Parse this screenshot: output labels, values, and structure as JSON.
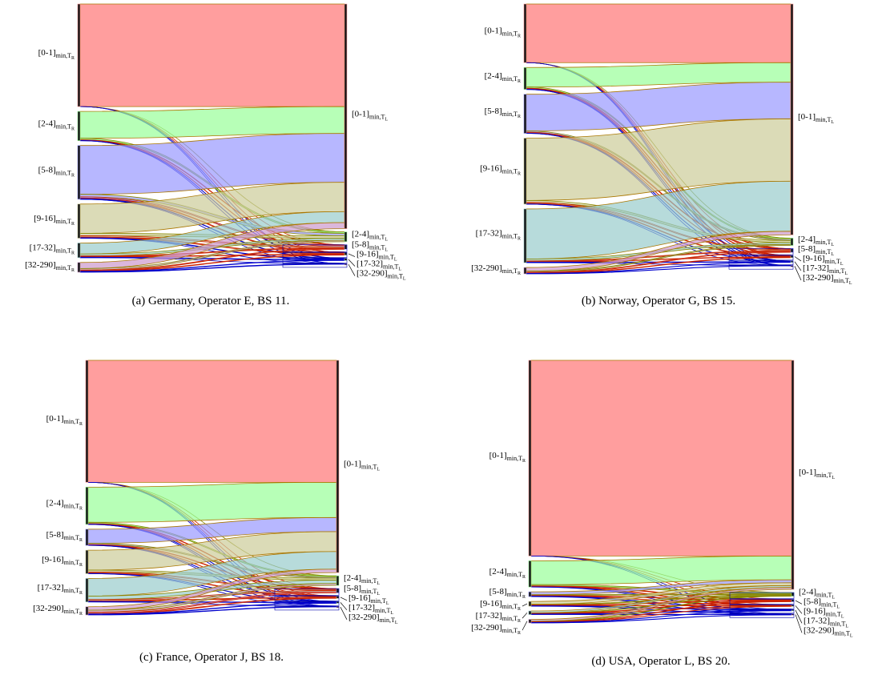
{
  "chart_data": [
    {
      "type": "sankey",
      "caption": "(a) Germany, Operator E, BS 11.",
      "left_nodes": [
        "[0-1]",
        "[2-4]",
        "[5-8]",
        "[9-16]",
        "[17-32]",
        "[32-290]"
      ],
      "right_nodes": [
        "[0-1]",
        "[2-4]",
        "[5-8]",
        "[9-16]",
        "[17-32]",
        "[32-290]"
      ],
      "subscript": "min,T",
      "left_index": "R",
      "right_index": "L",
      "colors": [
        "#ff9999",
        "#99ff99",
        "#9999ff",
        "#cccc99",
        "#99cccc",
        "#cc99cc"
      ],
      "link_colors": [
        "#aa7700",
        "#888800",
        "#cc2200",
        "#cc2200",
        "#0000cc",
        "#0000cc"
      ],
      "flows": [
        [
          42,
          0,
          0,
          0,
          0,
          0
        ],
        [
          11,
          0.6,
          0.2,
          0.1,
          0.1,
          0
        ],
        [
          20,
          1,
          0.5,
          0.3,
          0.2,
          0
        ],
        [
          12,
          1,
          0.5,
          0.3,
          0.2,
          0
        ],
        [
          4.5,
          0.8,
          0.3,
          0.2,
          0.2,
          0
        ],
        [
          2.5,
          0.6,
          0.3,
          0.2,
          0.2,
          0.2
        ]
      ]
    },
    {
      "type": "sankey",
      "caption": "(b) Norway, Operator G, BS 15.",
      "left_nodes": [
        "[0-1]",
        "[2-4]",
        "[5-8]",
        "[9-16]",
        "[17-32]",
        "[32-290]"
      ],
      "right_nodes": [
        "[0-1]",
        "[2-4]",
        "[5-8]",
        "[9-16]",
        "[17-32]",
        "[32-290]"
      ],
      "subscript": "min,T",
      "left_index": "R",
      "right_index": "L",
      "colors": [
        "#ff9999",
        "#99ff99",
        "#9999ff",
        "#cccc99",
        "#99cccc",
        "#cc99cc"
      ],
      "link_colors": [
        "#aa7700",
        "#888800",
        "#cc2200",
        "#cc2200",
        "#0000cc",
        "#0000cc"
      ],
      "flows": [
        [
          24,
          0,
          0,
          0,
          0,
          0
        ],
        [
          8,
          0.5,
          0.2,
          0.2,
          0.1,
          0
        ],
        [
          15,
          0.5,
          0.3,
          0.1,
          0.1,
          0
        ],
        [
          25.5,
          0.8,
          0.4,
          0.2,
          0.1,
          0
        ],
        [
          20.5,
          0.8,
          0.3,
          0.2,
          0.2,
          0
        ],
        [
          1.5,
          0.4,
          0.3,
          0.2,
          0.1,
          0.1
        ]
      ]
    },
    {
      "type": "sankey",
      "caption": "(c) France, Operator J, BS 18.",
      "left_nodes": [
        "[0-1]",
        "[2-4]",
        "[5-8]",
        "[9-16]",
        "[17-32]",
        "[32-290]"
      ],
      "right_nodes": [
        "[0-1]",
        "[2-4]",
        "[5-8]",
        "[9-16]",
        "[17-32]",
        "[32-290]"
      ],
      "subscript": "min,T",
      "left_index": "R",
      "right_index": "L",
      "colors": [
        "#ff9999",
        "#99ff99",
        "#9999ff",
        "#cccc99",
        "#99cccc",
        "#cc99cc"
      ],
      "link_colors": [
        "#aa7700",
        "#888800",
        "#cc2200",
        "#cc2200",
        "#0000cc",
        "#0000cc"
      ],
      "flows": [
        [
          52,
          0,
          0,
          0,
          0,
          0
        ],
        [
          15,
          0.5,
          0.2,
          0.1,
          0.1,
          0
        ],
        [
          6,
          0.5,
          0.2,
          0.1,
          0.1,
          0
        ],
        [
          8.5,
          0.8,
          0.4,
          0.2,
          0.1,
          0
        ],
        [
          7.5,
          1.5,
          0.5,
          0.3,
          0.2,
          0
        ],
        [
          1.5,
          0.8,
          0.5,
          0.3,
          0.2,
          0.2
        ]
      ]
    },
    {
      "type": "sankey",
      "caption": "(d) USA, Operator L, BS 20.",
      "left_nodes": [
        "[0-1]",
        "[2-4]",
        "[5-8]",
        "[9-16]",
        "[17-32]",
        "[32-290]"
      ],
      "right_nodes": [
        "[0-1]",
        "[2-4]",
        "[5-8]",
        "[9-16]",
        "[17-32]",
        "[32-290]"
      ],
      "subscript": "min,T",
      "left_index": "R",
      "right_index": "L",
      "colors": [
        "#ff9999",
        "#99ff99",
        "#9999ff",
        "#cccc99",
        "#99cccc",
        "#cc99cc"
      ],
      "link_colors": [
        "#aa7700",
        "#888800",
        "#cc2200",
        "#cc2200",
        "#0000cc",
        "#0000cc"
      ],
      "flows": [
        [
          82,
          0,
          0,
          0,
          0,
          0
        ],
        [
          10,
          0.5,
          0.2,
          0.2,
          0.1,
          0
        ],
        [
          1.2,
          0.3,
          0.2,
          0.1,
          0.1,
          0.1
        ],
        [
          1.2,
          0.3,
          0.2,
          0.1,
          0.1,
          0.1
        ],
        [
          0.8,
          0.2,
          0.2,
          0.1,
          0.1,
          0.1
        ],
        [
          0.8,
          0.2,
          0.2,
          0.1,
          0.1,
          0.1
        ]
      ]
    }
  ]
}
